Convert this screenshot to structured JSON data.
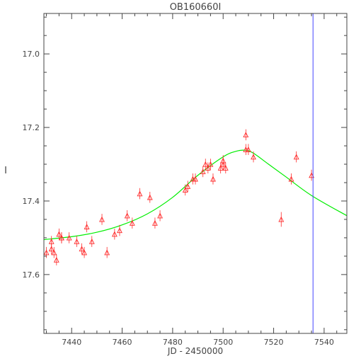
{
  "chart_data": {
    "type": "scatter",
    "title": "OB160660I",
    "xlabel": "JD - 2450000",
    "ylabel": "I",
    "xlim": [
      7429,
      7549
    ],
    "ylim": [
      17.76,
      16.89
    ],
    "x_ticks": [
      7440,
      7460,
      7480,
      7500,
      7520,
      7540
    ],
    "y_ticks": [
      17.0,
      17.2,
      17.4,
      17.6
    ],
    "y_tick_labels": [
      "17.0",
      "17.2",
      "17.4",
      "17.6"
    ],
    "grid": false,
    "colors": {
      "points": "#ff2a2a",
      "model": "#00ee00",
      "marker_line": "#4444ff",
      "axes": "#444444"
    },
    "series": [
      {
        "kind": "points",
        "marker": "triangle",
        "x": [
          7430,
          7432,
          7432,
          7433,
          7434,
          7435,
          7436,
          7436,
          7439,
          7442,
          7444,
          7445,
          7446,
          7448,
          7452,
          7454,
          7457,
          7459,
          7462,
          7464,
          7467,
          7471,
          7473,
          7475,
          7485,
          7486,
          7488,
          7489,
          7492,
          7493,
          7494,
          7495,
          7496,
          7499,
          7500,
          7500,
          7501,
          7509,
          7509,
          7510,
          7512,
          7523,
          7527,
          7529,
          7535
        ],
        "y": [
          17.54,
          17.53,
          17.51,
          17.54,
          17.56,
          17.49,
          17.5,
          17.5,
          17.5,
          17.51,
          17.53,
          17.54,
          17.47,
          17.51,
          17.45,
          17.54,
          17.49,
          17.48,
          17.44,
          17.46,
          17.38,
          17.39,
          17.46,
          17.44,
          17.37,
          17.36,
          17.34,
          17.34,
          17.32,
          17.3,
          17.31,
          17.3,
          17.34,
          17.31,
          17.29,
          17.3,
          17.31,
          17.22,
          17.26,
          17.26,
          17.28,
          17.45,
          17.34,
          17.28,
          17.33
        ],
        "err": [
          0.015,
          0.015,
          0.015,
          0.015,
          0.015,
          0.015,
          0.015,
          0.015,
          0.015,
          0.015,
          0.015,
          0.015,
          0.015,
          0.015,
          0.015,
          0.015,
          0.015,
          0.015,
          0.015,
          0.015,
          0.015,
          0.015,
          0.015,
          0.015,
          0.015,
          0.015,
          0.015,
          0.015,
          0.015,
          0.015,
          0.015,
          0.015,
          0.015,
          0.015,
          0.015,
          0.015,
          0.015,
          0.015,
          0.015,
          0.015,
          0.015,
          0.02,
          0.015,
          0.015,
          0.015
        ]
      },
      {
        "kind": "model",
        "x": [
          7429,
          7440,
          7450,
          7460,
          7470,
          7480,
          7490,
          7500,
          7505,
          7509,
          7512,
          7518,
          7525,
          7535,
          7549
        ],
        "y": [
          17.505,
          17.497,
          17.485,
          17.465,
          17.435,
          17.39,
          17.33,
          17.28,
          17.265,
          17.262,
          17.27,
          17.3,
          17.335,
          17.385,
          17.44
        ]
      }
    ],
    "vertical_line": {
      "x": 7535.6
    }
  }
}
